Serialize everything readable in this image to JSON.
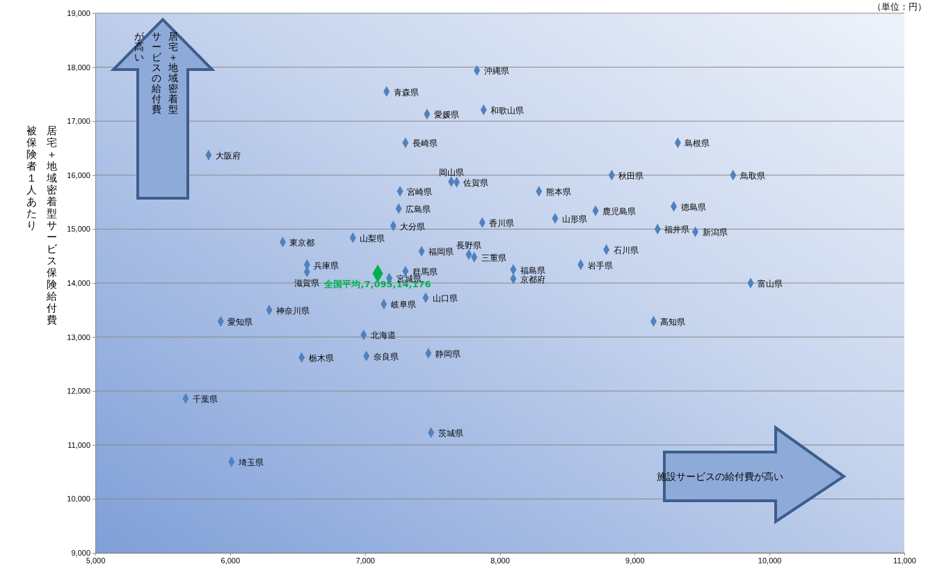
{
  "chart_data": {
    "type": "scatter",
    "ylabel": "居宅＋地域密着型サービス保険給付費被保険者１人あたり",
    "annotations": [
      "（単位：円）",
      "居宅＋地域密着型サービスの給付費が高い",
      "施設サービスの給付費が高い"
    ],
    "xlim": [
      5000,
      11000
    ],
    "ylim": [
      9000,
      19000
    ],
    "xticks": [
      {
        "value": 5000,
        "label": "5,000"
      },
      {
        "value": 6000,
        "label": "6,000"
      },
      {
        "value": 7000,
        "label": "7,000"
      },
      {
        "value": 8000,
        "label": "8,000"
      },
      {
        "value": 9000,
        "label": "9,000"
      },
      {
        "value": 10000,
        "label": "10,000"
      },
      {
        "value": 11000,
        "label": "11,000"
      }
    ],
    "yticks": [
      {
        "value": 9000,
        "label": "9,000"
      },
      {
        "value": 10000,
        "label": "10,000"
      },
      {
        "value": 11000,
        "label": "11,000"
      },
      {
        "value": 12000,
        "label": "12,000"
      },
      {
        "value": 13000,
        "label": "13,000"
      },
      {
        "value": 14000,
        "label": "14,000"
      },
      {
        "value": 15000,
        "label": "15,000"
      },
      {
        "value": 16000,
        "label": "16,000"
      },
      {
        "value": 17000,
        "label": "17,000"
      },
      {
        "value": 18000,
        "label": "18,000"
      },
      {
        "value": 19000,
        "label": "19,000"
      }
    ],
    "grid": "y",
    "marker": "diamond",
    "series": [
      {
        "color": "#00b050",
        "x": [
          7095
        ],
        "values": [
          14176
        ],
        "value_labels": [
          "全国平均,7,095,14,176"
        ]
      },
      {
        "color": "#4f81bd",
        "x": [
          7830,
          7160,
          7460,
          7880,
          7300,
          5840,
          9320,
          8830,
          9730,
          7640,
          7680,
          7260,
          8290,
          7250,
          8710,
          9290,
          8410,
          7870,
          7210,
          9170,
          9450,
          6910,
          6390,
          8790,
          7420,
          7770,
          7810,
          8600,
          6570,
          6570,
          7300,
          8100,
          7180,
          8100,
          9860,
          7450,
          7140,
          6290,
          5930,
          9140,
          6990,
          7010,
          7470,
          6530,
          5670,
          7490,
          6010
        ],
        "values": [
          17940,
          17550,
          17130,
          17210,
          16600,
          16370,
          16600,
          16000,
          16000,
          15880,
          15870,
          15700,
          15700,
          15380,
          15340,
          15420,
          15200,
          15120,
          15060,
          15000,
          14950,
          14840,
          14760,
          14620,
          14590,
          14530,
          14480,
          14340,
          14340,
          14210,
          14220,
          14250,
          14090,
          14080,
          14000,
          13730,
          13610,
          13500,
          13290,
          13290,
          13040,
          12650,
          12700,
          12620,
          11860,
          11230,
          10690
        ],
        "value_labels": [
          "沖縄県",
          "青森県",
          "愛媛県",
          "和歌山県",
          "長崎県",
          "大阪府",
          "島根県",
          "秋田県",
          "鳥取県",
          "岡山県",
          "佐賀県",
          "宮崎県",
          "熊本県",
          "広島県",
          "鹿児島県",
          "徳島県",
          "山形県",
          "香川県",
          "大分県",
          "福井県",
          "新潟県",
          "山梨県",
          "東京都",
          "石川県",
          "福岡県",
          "長野県",
          "三重県",
          "岩手県",
          "兵庫県",
          "滋賀県",
          "群馬県",
          "福島県",
          "宮城県",
          "京都府",
          "富山県",
          "山口県",
          "岐阜県",
          "神奈川県",
          "愛知県",
          "高知県",
          "北海道",
          "奈良県",
          "静岡県",
          "栃木県",
          "千葉県",
          "茨城県",
          "埼玉県"
        ]
      }
    ]
  }
}
